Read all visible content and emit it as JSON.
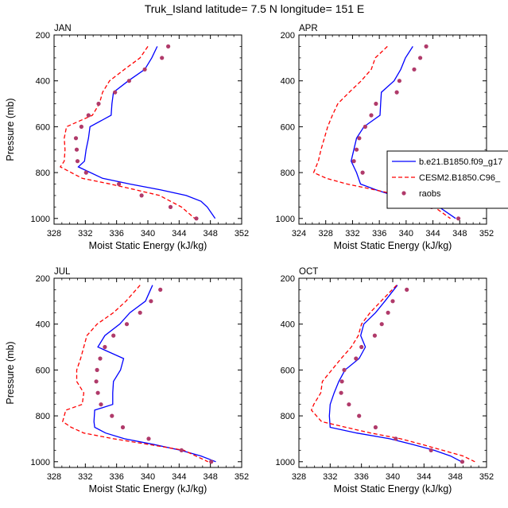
{
  "title": "Truk_Island  latitude= 7.5 N longitude= 151 E",
  "legend": {
    "placement": "right-of-APR-panel",
    "entries": [
      {
        "label": "b.e21.B1850.f09_g17",
        "style": "solid",
        "color": "#0000ff"
      },
      {
        "label": "CESM2.B1850.C96_",
        "style": "dashed",
        "color": "#ff0000"
      },
      {
        "label": "raobs",
        "style": "dots",
        "color": "#b03a6a"
      }
    ]
  },
  "chart_data": [
    {
      "type": "line",
      "panel_title": "JAN",
      "xlabel": "Moist Static Energy (kJ/kg)",
      "ylabel": "Pressure (mb)",
      "xlim": [
        328,
        352
      ],
      "ylim": [
        200,
        1025
      ],
      "y_inverted": true,
      "xticks": [
        328,
        332,
        336,
        340,
        344,
        348,
        352
      ],
      "yticks": [
        200,
        400,
        600,
        800,
        1000
      ],
      "series": [
        {
          "name": "b.e21.B1850.f09_g17",
          "points": [
            [
              341.2,
              250
            ],
            [
              340.5,
              300
            ],
            [
              339.6,
              350
            ],
            [
              337.5,
              400
            ],
            [
              335.6,
              450
            ],
            [
              335.4,
              500
            ],
            [
              335.3,
              550
            ],
            [
              332.6,
              600
            ],
            [
              332.4,
              650
            ],
            [
              332.1,
              700
            ],
            [
              331.9,
              750
            ],
            [
              331.1,
              775
            ],
            [
              334.2,
              825
            ],
            [
              337.7,
              850
            ],
            [
              341.6,
              875
            ],
            [
              344.9,
              900
            ],
            [
              346.8,
              925
            ],
            [
              347.6,
              950
            ],
            [
              348.6,
              1000
            ]
          ]
        },
        {
          "name": "CESM2.B1850.C96_",
          "points": [
            [
              340.0,
              250
            ],
            [
              339.0,
              300
            ],
            [
              337.0,
              350
            ],
            [
              335.1,
              400
            ],
            [
              334.2,
              450
            ],
            [
              333.8,
              500
            ],
            [
              332.9,
              550
            ],
            [
              329.6,
              600
            ],
            [
              329.3,
              650
            ],
            [
              329.4,
              700
            ],
            [
              329.3,
              750
            ],
            [
              328.8,
              775
            ],
            [
              331.6,
              825
            ],
            [
              335.2,
              850
            ],
            [
              338.4,
              875
            ],
            [
              341.5,
              900
            ],
            [
              342.9,
              925
            ],
            [
              344.3,
              950
            ],
            [
              346.0,
              1000
            ]
          ]
        },
        {
          "name": "raobs",
          "points": [
            [
              342.6,
              250
            ],
            [
              341.8,
              300
            ],
            [
              339.6,
              350
            ],
            [
              337.6,
              400
            ],
            [
              335.8,
              450
            ],
            [
              333.7,
              500
            ],
            [
              332.4,
              550
            ],
            [
              331.5,
              600
            ],
            [
              330.8,
              650
            ],
            [
              330.9,
              700
            ],
            [
              331.0,
              750
            ],
            [
              332.1,
              800
            ],
            [
              336.3,
              850
            ],
            [
              339.2,
              900
            ],
            [
              342.9,
              950
            ],
            [
              346.2,
              1000
            ]
          ]
        }
      ]
    },
    {
      "type": "line",
      "panel_title": "APR",
      "xlabel": "Moist Static Energy (kJ/kg)",
      "ylabel": "",
      "xlim": [
        324,
        352
      ],
      "ylim": [
        200,
        1025
      ],
      "y_inverted": true,
      "xticks": [
        324,
        328,
        332,
        336,
        340,
        344,
        348,
        352
      ],
      "yticks": [
        200,
        400,
        600,
        800,
        1000
      ],
      "series": [
        {
          "name": "b.e21.B1850.f09_g17",
          "points": [
            [
              341.0,
              250
            ],
            [
              339.9,
              300
            ],
            [
              339.2,
              350
            ],
            [
              338.2,
              400
            ],
            [
              336.3,
              450
            ],
            [
              336.2,
              500
            ],
            [
              336.1,
              550
            ],
            [
              333.7,
              600
            ],
            [
              332.6,
              650
            ],
            [
              332.2,
              700
            ],
            [
              331.8,
              750
            ],
            [
              332.6,
              800
            ],
            [
              333.2,
              850
            ],
            [
              335.5,
              875
            ],
            [
              338.1,
              900
            ],
            [
              341.8,
              925
            ],
            [
              344.9,
              950
            ],
            [
              347.4,
              1000
            ]
          ]
        },
        {
          "name": "CESM2.B1850.C96_",
          "points": [
            [
              337.2,
              250
            ],
            [
              335.4,
              300
            ],
            [
              334.8,
              350
            ],
            [
              333.3,
              400
            ],
            [
              331.5,
              450
            ],
            [
              329.8,
              500
            ],
            [
              329.0,
              550
            ],
            [
              328.3,
              600
            ],
            [
              327.8,
              650
            ],
            [
              327.3,
              700
            ],
            [
              326.9,
              750
            ],
            [
              326.2,
              800
            ],
            [
              328.1,
              825
            ],
            [
              331.2,
              850
            ],
            [
              335.3,
              875
            ],
            [
              339.1,
              900
            ],
            [
              342.0,
              925
            ],
            [
              344.2,
              950
            ],
            [
              346.6,
              1000
            ]
          ]
        },
        {
          "name": "raobs",
          "points": [
            [
              343.0,
              250
            ],
            [
              342.1,
              300
            ],
            [
              341.2,
              350
            ],
            [
              339.0,
              400
            ],
            [
              338.6,
              450
            ],
            [
              335.5,
              500
            ],
            [
              334.8,
              550
            ],
            [
              333.9,
              600
            ],
            [
              333.0,
              650
            ],
            [
              332.6,
              700
            ],
            [
              332.2,
              750
            ],
            [
              333.5,
              800
            ],
            [
              337.4,
              850
            ],
            [
              339.2,
              900
            ],
            [
              343.8,
              950
            ],
            [
              347.8,
              1000
            ]
          ]
        }
      ]
    },
    {
      "type": "line",
      "panel_title": "JUL",
      "xlabel": "Moist Static Energy (kJ/kg)",
      "ylabel": "Pressure (mb)",
      "xlim": [
        328,
        352
      ],
      "ylim": [
        200,
        1025
      ],
      "y_inverted": true,
      "xticks": [
        328,
        332,
        336,
        340,
        344,
        348,
        352
      ],
      "yticks": [
        200,
        400,
        600,
        800,
        1000
      ],
      "series": [
        {
          "name": "b.e21.B1850.f09_g17",
          "points": [
            [
              340.6,
              230
            ],
            [
              339.7,
              300
            ],
            [
              337.7,
              350
            ],
            [
              336.4,
              400
            ],
            [
              334.5,
              450
            ],
            [
              333.6,
              500
            ],
            [
              336.9,
              550
            ],
            [
              336.5,
              600
            ],
            [
              335.6,
              650
            ],
            [
              335.5,
              700
            ],
            [
              335.5,
              750
            ],
            [
              333.2,
              775
            ],
            [
              333.1,
              825
            ],
            [
              333.2,
              850
            ],
            [
              334.6,
              875
            ],
            [
              337.0,
              900
            ],
            [
              340.8,
              925
            ],
            [
              344.2,
              950
            ],
            [
              346.8,
              975
            ],
            [
              348.7,
              1000
            ]
          ]
        },
        {
          "name": "CESM2.B1850.C96_",
          "points": [
            [
              339.0,
              230
            ],
            [
              337.2,
              300
            ],
            [
              335.6,
              350
            ],
            [
              333.5,
              400
            ],
            [
              332.2,
              450
            ],
            [
              331.8,
              500
            ],
            [
              331.4,
              550
            ],
            [
              330.9,
              600
            ],
            [
              330.9,
              650
            ],
            [
              331.8,
              700
            ],
            [
              331.6,
              750
            ],
            [
              329.5,
              775
            ],
            [
              329.1,
              825
            ],
            [
              330.2,
              850
            ],
            [
              331.8,
              875
            ],
            [
              335.6,
              900
            ],
            [
              340.2,
              925
            ],
            [
              344.6,
              950
            ],
            [
              347.7,
              1000
            ]
          ]
        },
        {
          "name": "raobs",
          "points": [
            [
              341.6,
              250
            ],
            [
              340.4,
              300
            ],
            [
              339.0,
              350
            ],
            [
              337.3,
              400
            ],
            [
              335.6,
              450
            ],
            [
              334.5,
              500
            ],
            [
              333.9,
              550
            ],
            [
              333.5,
              600
            ],
            [
              333.4,
              650
            ],
            [
              333.6,
              700
            ],
            [
              334.0,
              750
            ],
            [
              335.4,
              800
            ],
            [
              336.8,
              850
            ],
            [
              340.1,
              900
            ],
            [
              344.3,
              950
            ],
            [
              348.1,
              1000
            ]
          ]
        }
      ]
    },
    {
      "type": "line",
      "panel_title": "OCT",
      "xlabel": "Moist Static Energy (kJ/kg)",
      "ylabel": "",
      "xlim": [
        328,
        352
      ],
      "ylim": [
        200,
        1025
      ],
      "y_inverted": true,
      "xticks": [
        328,
        332,
        336,
        340,
        344,
        348,
        352
      ],
      "yticks": [
        200,
        400,
        600,
        800,
        1000
      ],
      "series": [
        {
          "name": "b.e21.B1850.f09_g17",
          "points": [
            [
              340.6,
              230
            ],
            [
              339.0,
              300
            ],
            [
              337.8,
              350
            ],
            [
              336.3,
              400
            ],
            [
              335.9,
              450
            ],
            [
              336.5,
              500
            ],
            [
              335.7,
              550
            ],
            [
              333.9,
              600
            ],
            [
              333.1,
              650
            ],
            [
              332.5,
              700
            ],
            [
              332.0,
              750
            ],
            [
              331.9,
              800
            ],
            [
              332.0,
              850
            ],
            [
              335.4,
              875
            ],
            [
              339.6,
              900
            ],
            [
              342.6,
              925
            ],
            [
              345.3,
              950
            ],
            [
              347.4,
              975
            ],
            [
              348.8,
              1000
            ]
          ]
        },
        {
          "name": "CESM2.B1850.C96_",
          "points": [
            [
              340.5,
              230
            ],
            [
              338.5,
              300
            ],
            [
              337.1,
              350
            ],
            [
              336.0,
              400
            ],
            [
              335.6,
              450
            ],
            [
              334.7,
              500
            ],
            [
              333.4,
              550
            ],
            [
              332.2,
              600
            ],
            [
              331.0,
              650
            ],
            [
              330.8,
              700
            ],
            [
              329.9,
              750
            ],
            [
              329.6,
              775
            ],
            [
              330.9,
              825
            ],
            [
              334.0,
              850
            ],
            [
              337.2,
              875
            ],
            [
              341.0,
              900
            ],
            [
              343.8,
              925
            ],
            [
              346.4,
              950
            ],
            [
              349.0,
              975
            ],
            [
              350.5,
              1000
            ]
          ]
        },
        {
          "name": "raobs",
          "points": [
            [
              341.8,
              250
            ],
            [
              340.0,
              300
            ],
            [
              339.4,
              350
            ],
            [
              338.6,
              400
            ],
            [
              337.7,
              450
            ],
            [
              336.0,
              500
            ],
            [
              335.3,
              550
            ],
            [
              333.8,
              600
            ],
            [
              333.5,
              650
            ],
            [
              333.4,
              700
            ],
            [
              334.4,
              750
            ],
            [
              335.7,
              800
            ],
            [
              337.8,
              850
            ],
            [
              340.4,
              900
            ],
            [
              344.9,
              950
            ],
            [
              348.9,
              1000
            ]
          ]
        }
      ]
    }
  ]
}
